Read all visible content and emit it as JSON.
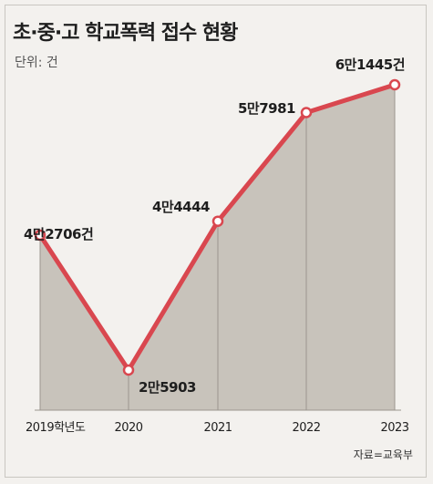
{
  "header": {
    "title": "초·중·고 학교폭력 접수 현황",
    "unit": "단위: 건",
    "source": "자료=교육부"
  },
  "colors": {
    "line": "#d9474f",
    "area": "#c8c3bb",
    "background": "#f3f1ee",
    "point_fill": "#ffffff"
  },
  "chart_data": {
    "type": "line",
    "title": "초·중·고 학교폭력 접수 현황",
    "ylabel": "단위: 건",
    "xlabel": "",
    "categories": [
      "2019학년도",
      "2020",
      "2021",
      "2022",
      "2023"
    ],
    "values": [
      42706,
      25903,
      44444,
      57981,
      61445
    ],
    "data_labels": [
      "4만2706건",
      "2만5903",
      "4만4444",
      "5만7981",
      "6만1445건"
    ],
    "ylim": [
      20000,
      65000
    ],
    "grid": false,
    "area_fill": true
  }
}
